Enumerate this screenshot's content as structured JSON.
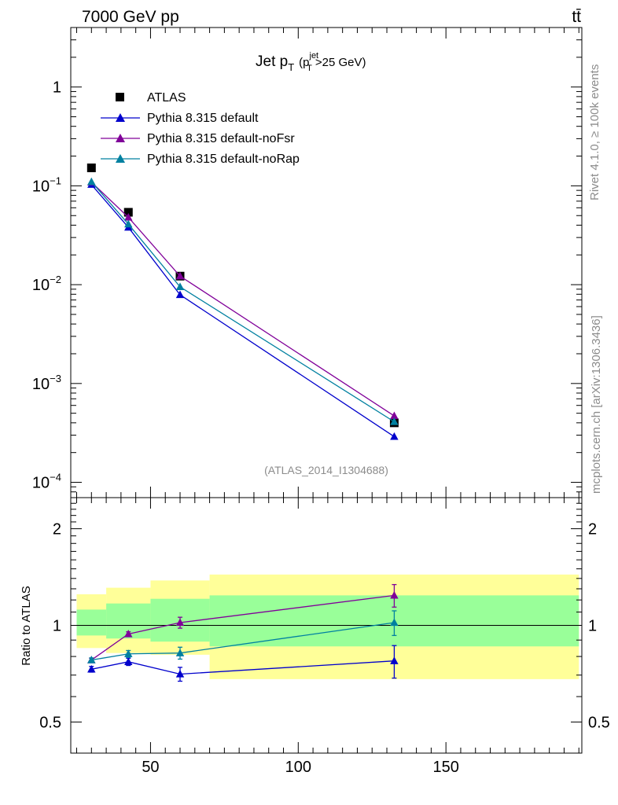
{
  "header": {
    "left": "7000 GeV pp",
    "right": "tt̄"
  },
  "side": {
    "top": "Rivet 4.1.0, ≥ 100k events",
    "bottom": "mcplots.cern.ch [arXiv:1306.3436]"
  },
  "title": {
    "main": "Jet p",
    "sub": "T",
    "paren_open": "(p",
    "jet_sup": "jet",
    "jet_sub": "T",
    "paren_rest": ">25 GeV)"
  },
  "watermark": "(ATLAS_2014_I1304688)",
  "legend": [
    "ATLAS",
    "Pythia 8.315 default",
    "Pythia 8.315 default-noFsr",
    "Pythia 8.315 default-noRap"
  ],
  "colors": {
    "data": "#000000",
    "default": "#0000cc",
    "noFsr": "#800099",
    "noRap": "#0080a0",
    "band_outer": "#ffff99",
    "band_inner": "#99ff99"
  },
  "chart_data": {
    "type": "scatter",
    "xlim": [
      23,
      196
    ],
    "main": {
      "yscale": "log",
      "ylim": [
        7e-05,
        4
      ],
      "yticks": [
        {
          "v": 1,
          "b": "1",
          "e": ""
        },
        {
          "v": 0.1,
          "b": "10",
          "e": "−1"
        },
        {
          "v": 0.01,
          "b": "10",
          "e": "−2"
        },
        {
          "v": 0.001,
          "b": "10",
          "e": "−3"
        },
        {
          "v": 0.0001,
          "b": "10",
          "e": "−4"
        }
      ],
      "series": [
        {
          "name": "ATLAS",
          "key": "data",
          "marker": "square",
          "x": [
            30,
            42.5,
            60,
            132.5
          ],
          "y": [
            0.152,
            0.054,
            0.0122,
            0.0004
          ]
        },
        {
          "name": "Pythia 8.315 default",
          "key": "default",
          "marker": "triangle",
          "x": [
            30,
            42.5,
            60,
            132.5
          ],
          "y": [
            0.103,
            0.038,
            0.0079,
            0.00029
          ]
        },
        {
          "name": "Pythia 8.315 default-noFsr",
          "key": "noFsr",
          "marker": "triangle",
          "x": [
            30,
            42.5,
            60,
            132.5
          ],
          "y": [
            0.109,
            0.048,
            0.0122,
            0.00047
          ]
        },
        {
          "name": "Pythia 8.315 default-noRap",
          "key": "noRap",
          "marker": "triangle",
          "x": [
            30,
            42.5,
            60,
            132.5
          ],
          "y": [
            0.11,
            0.041,
            0.0095,
            0.00041
          ]
        }
      ]
    },
    "ratio": {
      "ylabel": "Ratio to ATLAS",
      "yscale": "log",
      "ylim": [
        0.4,
        2.5
      ],
      "yticks": [
        {
          "v": 2,
          "t": "2"
        },
        {
          "v": 1,
          "t": "1"
        },
        {
          "v": 0.5,
          "t": "0.5"
        }
      ],
      "bands": [
        {
          "x0": 25,
          "x1": 35,
          "outer": [
            0.85,
            1.25
          ],
          "inner": [
            0.93,
            1.12
          ]
        },
        {
          "x0": 35,
          "x1": 50,
          "outer": [
            0.82,
            1.31
          ],
          "inner": [
            0.91,
            1.17
          ]
        },
        {
          "x0": 50,
          "x1": 70,
          "outer": [
            0.81,
            1.38
          ],
          "inner": [
            0.89,
            1.21
          ]
        },
        {
          "x0": 70,
          "x1": 195,
          "outer": [
            0.68,
            1.44
          ],
          "inner": [
            0.86,
            1.24
          ]
        }
      ],
      "series": [
        {
          "name": "Pythia 8.315 default",
          "key": "default",
          "x": [
            30,
            42.5,
            60,
            132.5
          ],
          "y": [
            0.73,
            0.77,
            0.705,
            0.775
          ],
          "err": [
            0.015,
            0.02,
            0.035,
            0.09
          ]
        },
        {
          "name": "Pythia 8.315 default-noFsr",
          "key": "noFsr",
          "x": [
            30,
            42.5,
            60,
            132.5
          ],
          "y": [
            0.78,
            0.94,
            1.02,
            1.24
          ],
          "err": [
            0.01,
            0.015,
            0.04,
            0.1
          ]
        },
        {
          "name": "Pythia 8.315 default-noRap",
          "key": "noRap",
          "x": [
            30,
            42.5,
            60,
            132.5
          ],
          "y": [
            0.78,
            0.815,
            0.82,
            1.02
          ],
          "err": [
            0.012,
            0.02,
            0.035,
            0.09
          ]
        }
      ]
    },
    "xticks": [
      {
        "v": 50,
        "t": "50"
      },
      {
        "v": 100,
        "t": "100"
      },
      {
        "v": 150,
        "t": "150"
      }
    ]
  }
}
